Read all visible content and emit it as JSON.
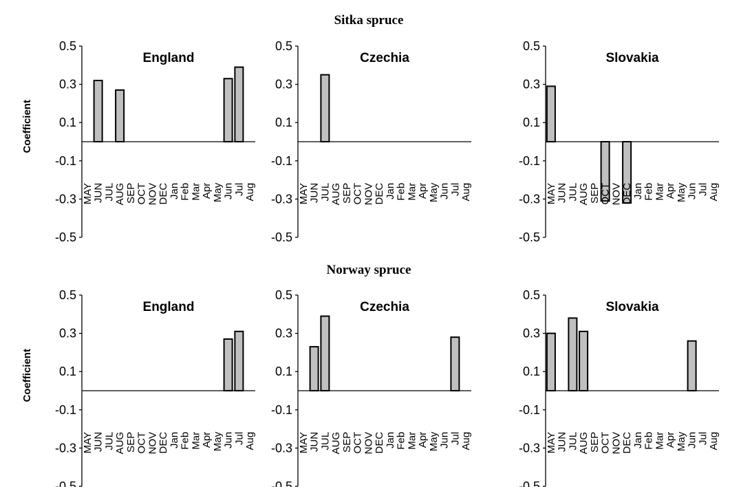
{
  "sections": [
    {
      "title": "Sitka spruce"
    },
    {
      "title": "Norway spruce"
    }
  ],
  "chart_data": [
    {
      "type": "bar",
      "section": 0,
      "title": "England",
      "ylabel": "Coefficient",
      "categories": [
        "MAY",
        "JUN",
        "JUL",
        "AUG",
        "SEP",
        "OCT",
        "NOV",
        "DEC",
        "Jan",
        "Feb",
        "Mar",
        "Apr",
        "May",
        "Jun",
        "Jul",
        "Aug"
      ],
      "values": [
        0,
        0.32,
        0,
        0.27,
        0,
        0,
        0,
        0,
        0,
        0,
        0,
        0,
        0,
        0.33,
        0.39,
        0
      ],
      "ylim": [
        -0.5,
        0.5
      ],
      "yticks": [
        "0.5",
        "0.3",
        "0.1",
        "-0.1",
        "-0.3",
        "-0.5"
      ]
    },
    {
      "type": "bar",
      "section": 0,
      "title": "Czechia",
      "ylabel": "",
      "categories": [
        "MAY",
        "JUN",
        "JUL",
        "AUG",
        "SEP",
        "OCT",
        "NOV",
        "DEC",
        "Jan",
        "Feb",
        "Mar",
        "Apr",
        "May",
        "Jun",
        "Jul",
        "Aug"
      ],
      "values": [
        0,
        0,
        0.35,
        0,
        0,
        0,
        0,
        0,
        0,
        0,
        0,
        0,
        0,
        0,
        0,
        0
      ],
      "ylim": [
        -0.5,
        0.5
      ],
      "yticks": [
        "0.5",
        "0.3",
        "0.1",
        "-0.1",
        "-0.3",
        "-0.5"
      ]
    },
    {
      "type": "bar",
      "section": 0,
      "title": "Slovakia",
      "ylabel": "",
      "categories": [
        "MAY",
        "JUN",
        "JUL",
        "AUG",
        "SEP",
        "OCT",
        "NOV",
        "DEC",
        "Jan",
        "Feb",
        "Mar",
        "Apr",
        "May",
        "Jun",
        "Jul",
        "Aug"
      ],
      "values": [
        0.29,
        0,
        0,
        0,
        0,
        -0.31,
        0,
        -0.32,
        0,
        0,
        0,
        0,
        0,
        0,
        0,
        0
      ],
      "ylim": [
        -0.5,
        0.5
      ],
      "yticks": [
        "0.5",
        "0.3",
        "0.1",
        "-0.1",
        "-0.3",
        "-0.5"
      ]
    },
    {
      "type": "bar",
      "section": 1,
      "title": "England",
      "ylabel": "Coefficient",
      "categories": [
        "MAY",
        "JUN",
        "JUL",
        "AUG",
        "SEP",
        "OCT",
        "NOV",
        "DEC",
        "Jan",
        "Feb",
        "Mar",
        "Apr",
        "May",
        "Jun",
        "Jul",
        "Aug"
      ],
      "values": [
        0,
        0,
        0,
        0,
        0,
        0,
        0,
        0,
        0,
        0,
        0,
        0,
        0,
        0.27,
        0.31,
        0
      ],
      "ylim": [
        -0.5,
        0.5
      ],
      "yticks": [
        "0.5",
        "0.3",
        "0.1",
        "-0.1",
        "-0.3",
        "-0.5"
      ]
    },
    {
      "type": "bar",
      "section": 1,
      "title": "Czechia",
      "ylabel": "",
      "categories": [
        "MAY",
        "JUN",
        "JUL",
        "AUG",
        "SEP",
        "OCT",
        "NOV",
        "DEC",
        "Jan",
        "Feb",
        "Mar",
        "Apr",
        "May",
        "Jun",
        "Jul",
        "Aug"
      ],
      "values": [
        0,
        0.23,
        0.39,
        0,
        0,
        0,
        0,
        0,
        0,
        0,
        0,
        0,
        0,
        0,
        0.28,
        0
      ],
      "ylim": [
        -0.5,
        0.5
      ],
      "yticks": [
        "0.5",
        "0.3",
        "0.1",
        "-0.1",
        "-0.3",
        "-0.5"
      ]
    },
    {
      "type": "bar",
      "section": 1,
      "title": "Slovakia",
      "ylabel": "",
      "categories": [
        "MAY",
        "JUN",
        "JUL",
        "AUG",
        "SEP",
        "OCT",
        "NOV",
        "DEC",
        "Jan",
        "Feb",
        "Mar",
        "Apr",
        "May",
        "Jun",
        "Jul",
        "Aug"
      ],
      "values": [
        0.3,
        0,
        0.38,
        0.31,
        0,
        0,
        0,
        0,
        0,
        0,
        0,
        0,
        0,
        0.26,
        0,
        0
      ],
      "ylim": [
        -0.5,
        0.5
      ],
      "yticks": [
        "0.5",
        "0.3",
        "0.1",
        "-0.1",
        "-0.3",
        "-0.5"
      ]
    }
  ]
}
